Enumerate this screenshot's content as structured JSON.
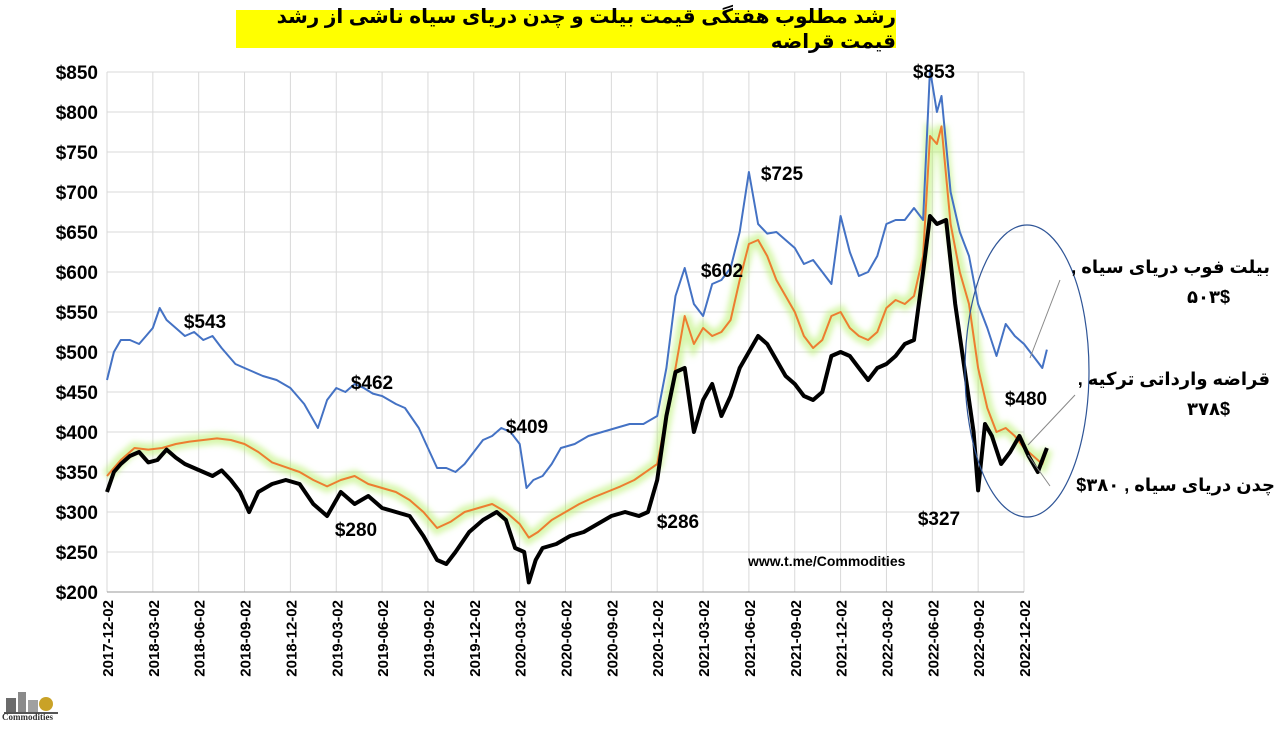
{
  "title": "رشد مطلوب هفتگی قیمت بیلت و چدن دریای سیاه ناشی از رشد قیمت قراضه",
  "watermark": "www.t.me/Commodities",
  "logo_text": "Commodities",
  "side_labels": {
    "billet_name": "بیلت فوب دریای سیاه ,",
    "billet_value": "۵۰۳$",
    "scrap_name": "قراضه وارداتی ترکیه ,",
    "scrap_value": "۳۷۸$",
    "pigiron_label": "چدن دریای سیاه ,  ۳۸۰$"
  },
  "colors": {
    "billet": "#4472c4",
    "scrap": "#ed7d31",
    "scrap_glow": "#b7f06a",
    "pigiron": "#000000",
    "title_bg": "#ffff00",
    "grid": "#d9d9d9"
  },
  "chart_data": {
    "type": "line",
    "ylim": [
      200,
      850
    ],
    "yticks": [
      "$200",
      "$250",
      "$300",
      "$350",
      "$400",
      "$450",
      "$500",
      "$550",
      "$600",
      "$650",
      "$700",
      "$750",
      "$800",
      "$850"
    ],
    "x_tick_labels": [
      "2017-12-02",
      "2018-03-02",
      "2018-06-02",
      "2018-09-02",
      "2018-12-02",
      "2019-03-02",
      "2019-06-02",
      "2019-09-02",
      "2019-12-02",
      "2020-03-02",
      "2020-06-02",
      "2020-09-02",
      "2020-12-02",
      "2021-03-02",
      "2021-06-02",
      "2021-09-02",
      "2021-12-02",
      "2022-03-02",
      "2022-06-02",
      "2022-09-02",
      "2022-12-02"
    ],
    "series": [
      {
        "name": "بیلت فوب دریای سیاه",
        "color": "#4472c4",
        "points": [
          [
            0,
            465
          ],
          [
            0.15,
            500
          ],
          [
            0.3,
            515
          ],
          [
            0.5,
            515
          ],
          [
            0.7,
            510
          ],
          [
            0.85,
            520
          ],
          [
            1,
            530
          ],
          [
            1.15,
            555
          ],
          [
            1.3,
            540
          ],
          [
            1.5,
            530
          ],
          [
            1.7,
            520
          ],
          [
            1.9,
            525
          ],
          [
            2.1,
            515
          ],
          [
            2.3,
            520
          ],
          [
            2.5,
            505
          ],
          [
            2.8,
            485
          ],
          [
            3.0,
            480
          ],
          [
            3.2,
            475
          ],
          [
            3.4,
            470
          ],
          [
            3.7,
            465
          ],
          [
            4.0,
            455
          ],
          [
            4.3,
            435
          ],
          [
            4.6,
            405
          ],
          [
            4.8,
            440
          ],
          [
            5.0,
            455
          ],
          [
            5.2,
            450
          ],
          [
            5.4,
            460
          ],
          [
            5.6,
            455
          ],
          [
            5.8,
            448
          ],
          [
            6.0,
            445
          ],
          [
            6.3,
            435
          ],
          [
            6.5,
            430
          ],
          [
            6.8,
            405
          ],
          [
            7.0,
            380
          ],
          [
            7.2,
            355
          ],
          [
            7.4,
            355
          ],
          [
            7.6,
            350
          ],
          [
            7.8,
            360
          ],
          [
            8.0,
            375
          ],
          [
            8.2,
            390
          ],
          [
            8.4,
            395
          ],
          [
            8.6,
            405
          ],
          [
            8.8,
            400
          ],
          [
            9.0,
            385
          ],
          [
            9.15,
            330
          ],
          [
            9.3,
            340
          ],
          [
            9.5,
            345
          ],
          [
            9.7,
            360
          ],
          [
            9.9,
            380
          ],
          [
            10.2,
            385
          ],
          [
            10.5,
            395
          ],
          [
            10.8,
            400
          ],
          [
            11.1,
            405
          ],
          [
            11.4,
            410
          ],
          [
            11.7,
            410
          ],
          [
            12.0,
            420
          ],
          [
            12.2,
            480
          ],
          [
            12.4,
            570
          ],
          [
            12.6,
            605
          ],
          [
            12.8,
            560
          ],
          [
            13.0,
            545
          ],
          [
            13.2,
            585
          ],
          [
            13.4,
            590
          ],
          [
            13.6,
            605
          ],
          [
            13.8,
            650
          ],
          [
            14.0,
            725
          ],
          [
            14.2,
            660
          ],
          [
            14.4,
            648
          ],
          [
            14.6,
            650
          ],
          [
            14.8,
            640
          ],
          [
            15.0,
            630
          ],
          [
            15.2,
            610
          ],
          [
            15.4,
            615
          ],
          [
            15.6,
            600
          ],
          [
            15.8,
            585
          ],
          [
            16.0,
            670
          ],
          [
            16.2,
            625
          ],
          [
            16.4,
            595
          ],
          [
            16.6,
            600
          ],
          [
            16.8,
            620
          ],
          [
            17.0,
            660
          ],
          [
            17.2,
            665
          ],
          [
            17.4,
            665
          ],
          [
            17.6,
            680
          ],
          [
            17.8,
            665
          ],
          [
            17.95,
            853
          ],
          [
            18.1,
            800
          ],
          [
            18.2,
            820
          ],
          [
            18.4,
            700
          ],
          [
            18.6,
            650
          ],
          [
            18.8,
            620
          ],
          [
            19.0,
            560
          ],
          [
            19.2,
            530
          ],
          [
            19.4,
            495
          ],
          [
            19.6,
            535
          ],
          [
            19.8,
            520
          ],
          [
            20.0,
            510
          ],
          [
            20.2,
            495
          ],
          [
            20.4,
            480
          ],
          [
            20.5,
            503
          ]
        ]
      },
      {
        "name": "قراضه وارداتی ترکیه",
        "color": "#ed7d31",
        "points": [
          [
            0,
            345
          ],
          [
            0.3,
            365
          ],
          [
            0.6,
            380
          ],
          [
            0.9,
            378
          ],
          [
            1.2,
            380
          ],
          [
            1.5,
            385
          ],
          [
            1.8,
            388
          ],
          [
            2.1,
            390
          ],
          [
            2.4,
            392
          ],
          [
            2.7,
            390
          ],
          [
            3.0,
            385
          ],
          [
            3.3,
            375
          ],
          [
            3.6,
            362
          ],
          [
            3.9,
            356
          ],
          [
            4.2,
            350
          ],
          [
            4.5,
            340
          ],
          [
            4.8,
            332
          ],
          [
            5.1,
            340
          ],
          [
            5.4,
            345
          ],
          [
            5.7,
            335
          ],
          [
            6.0,
            330
          ],
          [
            6.3,
            325
          ],
          [
            6.6,
            315
          ],
          [
            6.9,
            300
          ],
          [
            7.2,
            280
          ],
          [
            7.5,
            288
          ],
          [
            7.8,
            300
          ],
          [
            8.1,
            305
          ],
          [
            8.4,
            310
          ],
          [
            8.7,
            300
          ],
          [
            9.0,
            285
          ],
          [
            9.2,
            268
          ],
          [
            9.4,
            275
          ],
          [
            9.7,
            290
          ],
          [
            10.0,
            300
          ],
          [
            10.3,
            310
          ],
          [
            10.6,
            318
          ],
          [
            10.9,
            325
          ],
          [
            11.2,
            332
          ],
          [
            11.5,
            340
          ],
          [
            11.8,
            352
          ],
          [
            12.0,
            360
          ],
          [
            12.2,
            420
          ],
          [
            12.4,
            480
          ],
          [
            12.6,
            545
          ],
          [
            12.8,
            510
          ],
          [
            13.0,
            530
          ],
          [
            13.2,
            520
          ],
          [
            13.4,
            525
          ],
          [
            13.6,
            540
          ],
          [
            13.8,
            590
          ],
          [
            14.0,
            635
          ],
          [
            14.2,
            640
          ],
          [
            14.4,
            620
          ],
          [
            14.6,
            590
          ],
          [
            14.8,
            570
          ],
          [
            15.0,
            550
          ],
          [
            15.2,
            520
          ],
          [
            15.4,
            505
          ],
          [
            15.6,
            515
          ],
          [
            15.8,
            545
          ],
          [
            16.0,
            550
          ],
          [
            16.2,
            530
          ],
          [
            16.4,
            520
          ],
          [
            16.6,
            515
          ],
          [
            16.8,
            525
          ],
          [
            17.0,
            555
          ],
          [
            17.2,
            565
          ],
          [
            17.4,
            560
          ],
          [
            17.6,
            570
          ],
          [
            17.8,
            620
          ],
          [
            17.95,
            770
          ],
          [
            18.1,
            760
          ],
          [
            18.2,
            782
          ],
          [
            18.4,
            660
          ],
          [
            18.6,
            600
          ],
          [
            18.8,
            560
          ],
          [
            19.0,
            480
          ],
          [
            19.2,
            430
          ],
          [
            19.4,
            400
          ],
          [
            19.6,
            405
          ],
          [
            19.8,
            395
          ],
          [
            20.0,
            380
          ],
          [
            20.2,
            370
          ],
          [
            20.4,
            360
          ],
          [
            20.5,
            378
          ]
        ]
      },
      {
        "name": "چدن دریای سیاه",
        "color": "#000000",
        "points": [
          [
            0,
            325
          ],
          [
            0.15,
            350
          ],
          [
            0.3,
            360
          ],
          [
            0.5,
            370
          ],
          [
            0.7,
            375
          ],
          [
            0.9,
            362
          ],
          [
            1.1,
            365
          ],
          [
            1.3,
            378
          ],
          [
            1.5,
            368
          ],
          [
            1.7,
            360
          ],
          [
            1.9,
            355
          ],
          [
            2.1,
            350
          ],
          [
            2.3,
            345
          ],
          [
            2.5,
            352
          ],
          [
            2.7,
            340
          ],
          [
            2.9,
            325
          ],
          [
            3.1,
            300
          ],
          [
            3.3,
            325
          ],
          [
            3.6,
            335
          ],
          [
            3.9,
            340
          ],
          [
            4.2,
            335
          ],
          [
            4.5,
            310
          ],
          [
            4.8,
            295
          ],
          [
            5.1,
            325
          ],
          [
            5.4,
            310
          ],
          [
            5.7,
            320
          ],
          [
            6.0,
            305
          ],
          [
            6.3,
            300
          ],
          [
            6.6,
            295
          ],
          [
            6.9,
            270
          ],
          [
            7.2,
            240
          ],
          [
            7.4,
            235
          ],
          [
            7.6,
            250
          ],
          [
            7.9,
            275
          ],
          [
            8.2,
            290
          ],
          [
            8.5,
            300
          ],
          [
            8.7,
            290
          ],
          [
            8.9,
            255
          ],
          [
            9.1,
            250
          ],
          [
            9.2,
            212
          ],
          [
            9.35,
            240
          ],
          [
            9.5,
            255
          ],
          [
            9.8,
            260
          ],
          [
            10.1,
            270
          ],
          [
            10.4,
            275
          ],
          [
            10.7,
            285
          ],
          [
            11.0,
            295
          ],
          [
            11.3,
            300
          ],
          [
            11.6,
            295
          ],
          [
            11.8,
            300
          ],
          [
            12.0,
            340
          ],
          [
            12.2,
            420
          ],
          [
            12.4,
            475
          ],
          [
            12.6,
            480
          ],
          [
            12.8,
            400
          ],
          [
            13.0,
            440
          ],
          [
            13.2,
            460
          ],
          [
            13.4,
            420
          ],
          [
            13.6,
            445
          ],
          [
            13.8,
            480
          ],
          [
            14.0,
            500
          ],
          [
            14.2,
            520
          ],
          [
            14.4,
            510
          ],
          [
            14.6,
            490
          ],
          [
            14.8,
            470
          ],
          [
            15.0,
            460
          ],
          [
            15.2,
            445
          ],
          [
            15.4,
            440
          ],
          [
            15.6,
            450
          ],
          [
            15.8,
            495
          ],
          [
            16.0,
            500
          ],
          [
            16.2,
            495
          ],
          [
            16.4,
            480
          ],
          [
            16.6,
            465
          ],
          [
            16.8,
            480
          ],
          [
            17.0,
            485
          ],
          [
            17.2,
            495
          ],
          [
            17.4,
            510
          ],
          [
            17.6,
            515
          ],
          [
            17.8,
            600
          ],
          [
            17.95,
            670
          ],
          [
            18.1,
            660
          ],
          [
            18.3,
            665
          ],
          [
            18.5,
            560
          ],
          [
            18.7,
            480
          ],
          [
            18.9,
            400
          ],
          [
            19.0,
            327
          ],
          [
            19.15,
            410
          ],
          [
            19.3,
            395
          ],
          [
            19.5,
            360
          ],
          [
            19.7,
            375
          ],
          [
            19.9,
            395
          ],
          [
            20.1,
            370
          ],
          [
            20.3,
            350
          ],
          [
            20.5,
            380
          ]
        ]
      }
    ],
    "annotations": [
      "$543",
      "$462",
      "$280",
      "$409",
      "$286",
      "$602",
      "$725",
      "$853",
      "$480",
      "$327"
    ]
  }
}
